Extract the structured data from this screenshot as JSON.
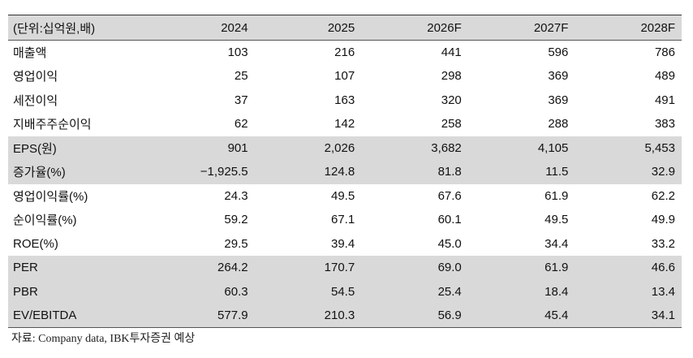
{
  "table": {
    "header": [
      "(단위:십억원,배)",
      "2024",
      "2025",
      "2026F",
      "2027F",
      "2028F"
    ],
    "rows": [
      [
        "매출액",
        "103",
        "216",
        "441",
        "596",
        "786"
      ],
      [
        "영업이익",
        "25",
        "107",
        "298",
        "369",
        "489"
      ],
      [
        "세전이익",
        "37",
        "163",
        "320",
        "369",
        "491"
      ],
      [
        "지배주주순이익",
        "62",
        "142",
        "258",
        "288",
        "383"
      ],
      [
        "EPS(원)",
        "901",
        "2,026",
        "3,682",
        "4,105",
        "5,453"
      ],
      [
        "증가율(%)",
        "−1,925.5",
        "124.8",
        "81.8",
        "11.5",
        "32.9"
      ],
      [
        "영업이익률(%)",
        "24.3",
        "49.5",
        "67.6",
        "61.9",
        "62.2"
      ],
      [
        "순이익률(%)",
        "59.2",
        "67.1",
        "60.1",
        "49.5",
        "49.9"
      ],
      [
        "ROE(%)",
        "29.5",
        "39.4",
        "45.0",
        "34.4",
        "33.2"
      ],
      [
        "PER",
        "264.2",
        "170.7",
        "69.0",
        "61.9",
        "46.6"
      ],
      [
        "PBR",
        "60.3",
        "54.5",
        "25.4",
        "18.4",
        "13.4"
      ],
      [
        "EV/EBITDA",
        "577.9",
        "210.3",
        "56.9",
        "45.4",
        "34.1"
      ]
    ],
    "source": "자료: Company data, IBK투자증권 예상"
  }
}
